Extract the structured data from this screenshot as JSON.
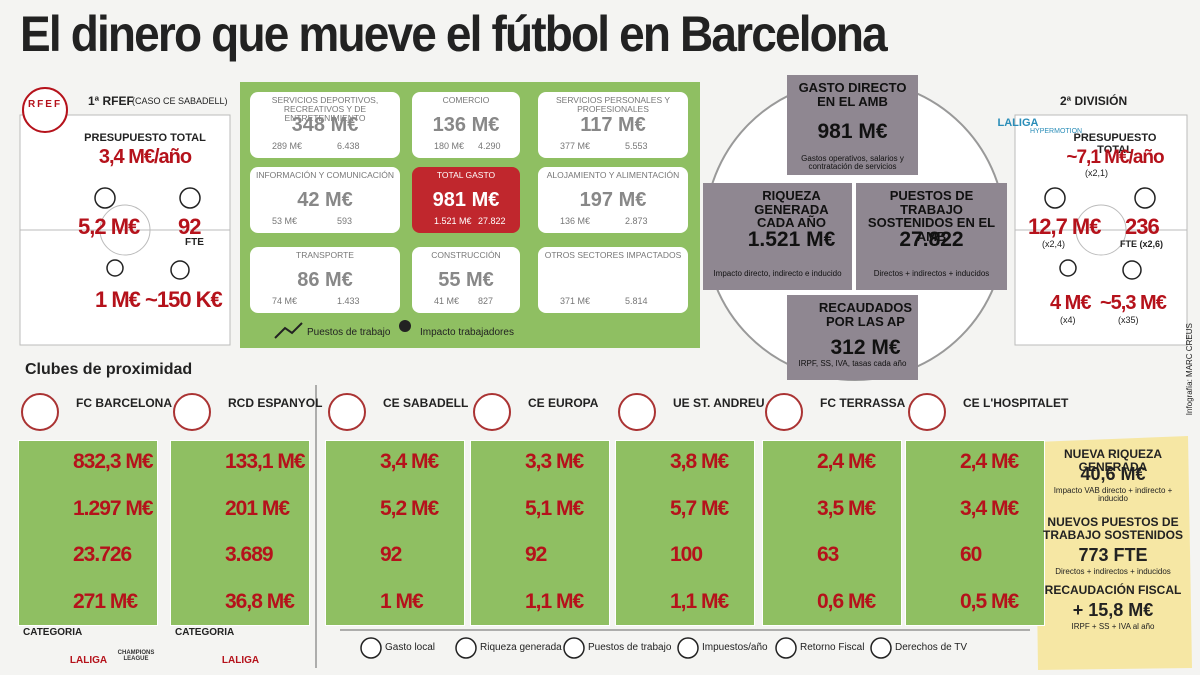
{
  "title": "El dinero que mueve el fútbol en Barcelona",
  "rfef": {
    "logo": "RFEF",
    "league": "1ª RFEF",
    "case": "(CASO CE SABADELL)",
    "budget_label": "PRESUPUESTO TOTAL",
    "budget": "3,4 M€/año",
    "gasto": "5,2 M€",
    "fte": "92",
    "fte_label": "FTE",
    "retorno": "1 M€",
    "tv": "~150 K€"
  },
  "segunda": {
    "logo": "LALIGA",
    "logo_sub": "HYPERMOTION",
    "league": "2ª DIVISIÓN",
    "budget_label": "PRESUPUESTO TOTAL",
    "budget": "~7,1 M€/año",
    "budget_x": "(x2,1)",
    "gasto": "12,7 M€",
    "gasto_x": "(x2,4)",
    "fte": "236",
    "fte_label": "FTE (x2,6)",
    "retorno": "4 M€",
    "retorno_x": "(x4)",
    "tv": "~5,3 M€",
    "tv_x": "(x35)"
  },
  "sectors": [
    {
      "name": "SERVICIOS DEPORTIVOS, RECREATIVOS Y DE ENTRETENIMIENTO",
      "value": "348 M€",
      "jobs": "289 M€",
      "workers": "6.438"
    },
    {
      "name": "COMERCIO",
      "value": "136 M€",
      "jobs": "180 M€",
      "workers": "4.290"
    },
    {
      "name": "SERVICIOS PERSONALES Y PROFESIONALES",
      "value": "117 M€",
      "jobs": "377 M€",
      "workers": "5.553"
    },
    {
      "name": "INFORMACIÓN Y COMUNICACIÓN",
      "value": "42 M€",
      "jobs": "53 M€",
      "workers": "593"
    },
    {
      "name": "TOTAL GASTO",
      "value": "981 M€",
      "jobs": "1.521 M€",
      "workers": "27.822"
    },
    {
      "name": "ALOJAMIENTO Y ALIMENTACIÓN",
      "value": "197 M€",
      "jobs": "136 M€",
      "workers": "2.873"
    },
    {
      "name": "TRANSPORTE",
      "value": "86 M€",
      "jobs": "74 M€",
      "workers": "1.433"
    },
    {
      "name": "CONSTRUCCIÓN",
      "value": "55 M€",
      "jobs": "41 M€",
      "workers": "827"
    },
    {
      "name": "OTROS SECTORES IMPACTADOS",
      "jobs": "371 M€",
      "workers": "5.814"
    }
  ],
  "sector_legend": {
    "jobs": "Puestos de trabajo",
    "workers": "Impacto trabajadores"
  },
  "amb": [
    {
      "title": "GASTO DIRECTO EN EL AMB",
      "value": "981 M€",
      "note": "Gastos operativos, salarios y contratación de servicios"
    },
    {
      "title": "RIQUEZA GENERADA CADA AÑO",
      "value": "1.521 M€",
      "note": "Impacto directo, indirecto e inducido"
    },
    {
      "title": "PUESTOS DE TRABAJO SOSTENIDOS EN EL AMB",
      "value": "27.822",
      "note": "Directos + indirectos + inducidos"
    },
    {
      "title": "RECAUDADOS POR LAS AP",
      "value": "312 M€",
      "note": "IRPF, SS, IVA, tasas cada año"
    }
  ],
  "clubs_title": "Clubes de proximidad",
  "clubs": [
    {
      "name": "FC BARCELONA",
      "values": [
        "832,3 M€",
        "1.297 M€",
        "23.726",
        "271 M€"
      ]
    },
    {
      "name": "RCD ESPANYOL",
      "values": [
        "133,1 M€",
        "201 M€",
        "3.689",
        "36,8 M€"
      ]
    },
    {
      "name": "CE SABADELL",
      "values": [
        "3,4 M€",
        "5,2 M€",
        "92",
        "1 M€"
      ]
    },
    {
      "name": "CE EUROPA",
      "values": [
        "3,3 M€",
        "5,1 M€",
        "92",
        "1,1 M€"
      ]
    },
    {
      "name": "UE ST. ANDREU",
      "values": [
        "3,8 M€",
        "5,7 M€",
        "100",
        "1,1 M€"
      ]
    },
    {
      "name": "FC TERRASSA",
      "values": [
        "2,4 M€",
        "3,5 M€",
        "63",
        "0,6 M€"
      ]
    },
    {
      "name": "CE L'HOSPITALET",
      "values": [
        "2,4 M€",
        "3,4 M€",
        "60",
        "0,5 M€"
      ]
    }
  ],
  "categories": [
    {
      "label": "CATEGORIA",
      "logos": [
        "LALIGA",
        "CHAMPIONS LEAGUE"
      ]
    },
    {
      "label": "CATEGORIA",
      "logos": [
        "LALIGA"
      ]
    }
  ],
  "legend": [
    "Gasto local",
    "Riqueza generada",
    "Puestos de trabajo",
    "Impuestos/año",
    "Retorno Fiscal",
    "Derechos de TV"
  ],
  "summary": [
    {
      "title": "NUEVA RIQUEZA GENERADA",
      "value": "40,6 M€",
      "note": "Impacto VAB directo + indirecto + inducido"
    },
    {
      "title": "NUEVOS PUESTOS DE TRABAJO SOSTENIDOS",
      "value": "773 FTE",
      "note": "Directos + indirectos + inducidos"
    },
    {
      "title": "RECAUDACIÓN FISCAL",
      "value": "+ 15,8 M€",
      "note": "IRPF + SS + IVA al año"
    }
  ],
  "credit": "Infografía: MARC CREUS"
}
